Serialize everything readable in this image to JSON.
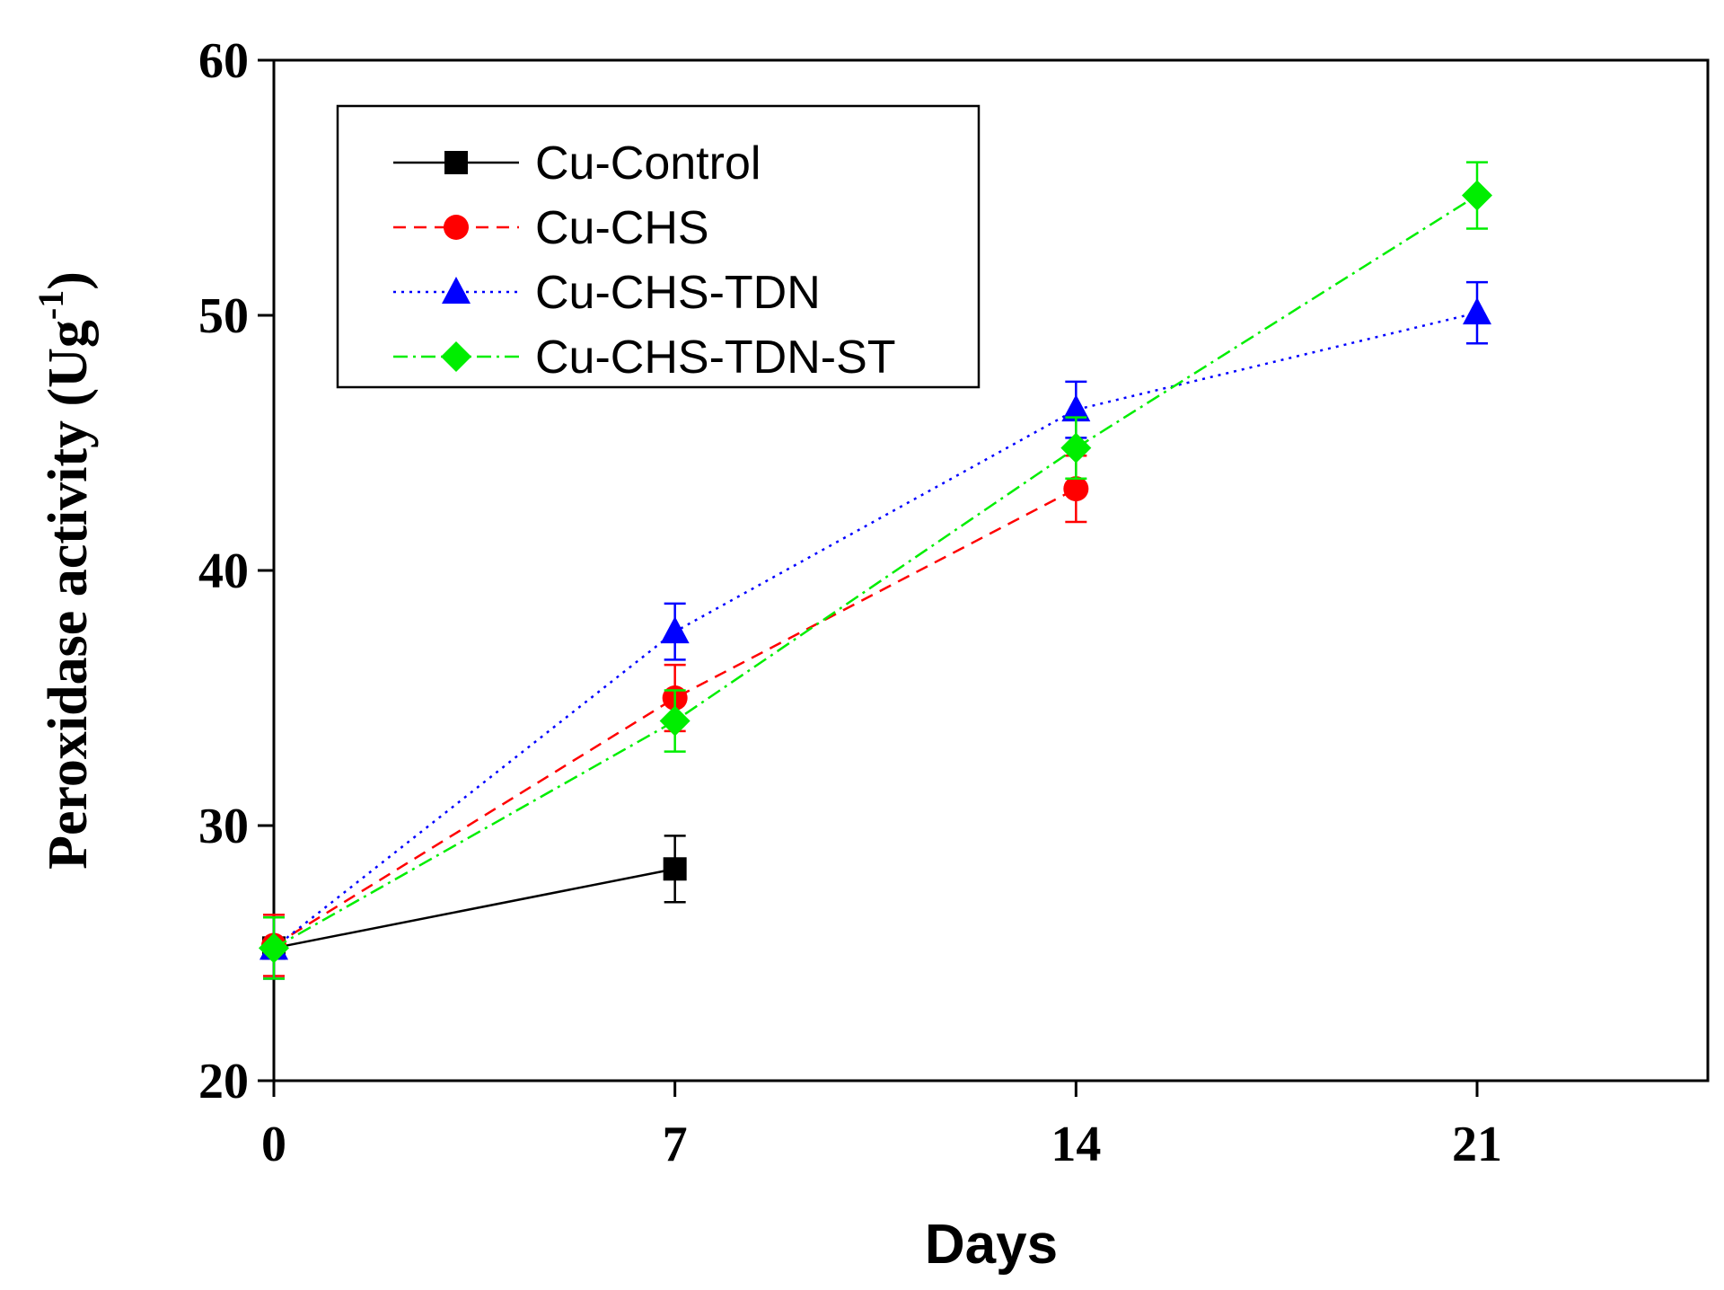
{
  "chart_data": {
    "type": "line",
    "title": "",
    "xlabel": "Days",
    "ylabel": "Peroxidase activity (Ug",
    "ylabel_superscript": "-1",
    "ylabel_close": ")",
    "xlim": [
      0,
      25.7
    ],
    "ylim": [
      20,
      60
    ],
    "xticks": [
      0,
      7,
      14,
      21
    ],
    "yticks": [
      20,
      30,
      40,
      50,
      60
    ],
    "grid": false,
    "legend_position": "top-left",
    "series": [
      {
        "name": "Cu-Control",
        "color": "#000000",
        "marker": "square",
        "line_style": "solid",
        "x": [
          0,
          7
        ],
        "values": [
          25.2,
          28.3
        ],
        "errors": [
          1.2,
          1.3
        ]
      },
      {
        "name": "Cu-CHS",
        "color": "#ff0000",
        "marker": "circle",
        "line_style": "dashed",
        "x": [
          0,
          7,
          14
        ],
        "values": [
          25.3,
          35.0,
          43.2
        ],
        "errors": [
          1.2,
          1.3,
          1.3
        ]
      },
      {
        "name": "Cu-CHS-TDN",
        "color": "#0000ff",
        "marker": "triangle",
        "line_style": "dotted",
        "x": [
          0,
          7,
          14,
          21
        ],
        "values": [
          25.2,
          37.6,
          46.3,
          50.1
        ],
        "errors": [
          1.2,
          1.1,
          1.1,
          1.2
        ]
      },
      {
        "name": "Cu-CHS-TDN-ST",
        "color": "#00ee00",
        "marker": "diamond",
        "line_style": "dashdot",
        "x": [
          0,
          7,
          14,
          21
        ],
        "values": [
          25.2,
          34.1,
          44.8,
          54.7
        ],
        "errors": [
          1.2,
          1.2,
          1.2,
          1.3
        ]
      }
    ]
  }
}
